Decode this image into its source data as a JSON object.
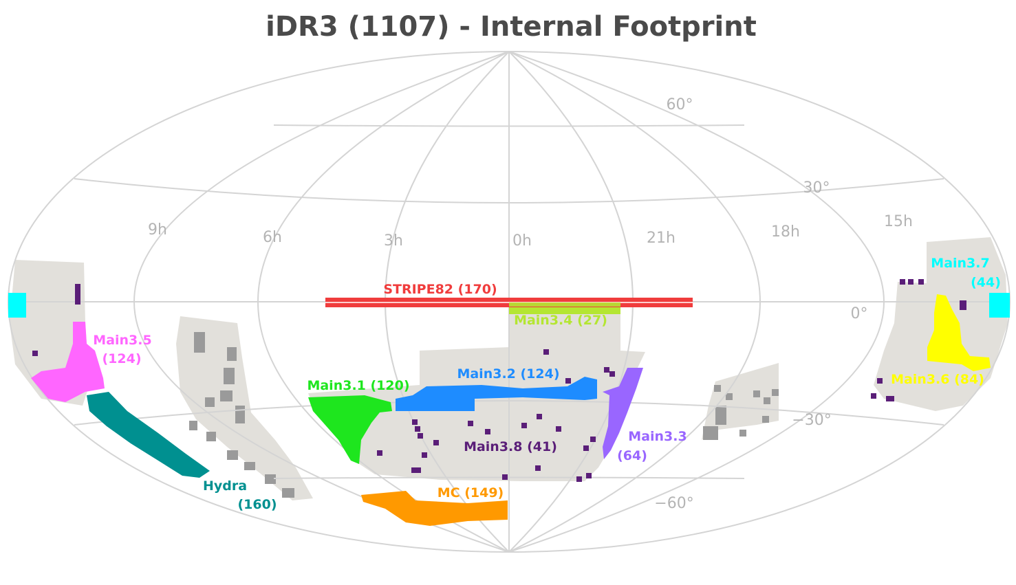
{
  "title": "iDR3 (1107) - Internal Footprint",
  "coordinate_labels": {
    "dec": [
      "60°",
      "30°",
      "0°",
      "−30°",
      "−60°"
    ],
    "ra": [
      "15h",
      "18h",
      "21h",
      "0h",
      "3h",
      "6h",
      "9h"
    ]
  },
  "colors": {
    "coverage": "#e2e0db",
    "grid": "#d4d4d4",
    "title": "#4a4a4a",
    "coord_label": "#b4b4b4"
  },
  "regions": [
    {
      "id": "stripe82",
      "lines": [
        "STRIPE82 (170)"
      ],
      "color": "#f03c3c"
    },
    {
      "id": "main3-1",
      "lines": [
        "Main3.1 (120)"
      ],
      "color": "#1ee61e"
    },
    {
      "id": "main3-2",
      "lines": [
        "Main3.2 (124)"
      ],
      "color": "#1e8cff"
    },
    {
      "id": "main3-3",
      "lines": [
        "Main3.3",
        "(64)"
      ],
      "color": "#9966ff"
    },
    {
      "id": "main3-4",
      "lines": [
        "Main3.4 (27)"
      ],
      "color": "#b4e632"
    },
    {
      "id": "main3-5",
      "lines": [
        "Main3.5",
        "(124)"
      ],
      "color": "#ff66ff"
    },
    {
      "id": "main3-6",
      "lines": [
        "Main3.6 (84)"
      ],
      "color": "#ffff00"
    },
    {
      "id": "main3-7",
      "lines": [
        "Main3.7",
        "(44)"
      ],
      "color": "#00ffff"
    },
    {
      "id": "main3-8",
      "lines": [
        "Main3.8 (41)"
      ],
      "color": "#5a1e78"
    },
    {
      "id": "hydra",
      "lines": [
        "Hydra",
        "(160)"
      ],
      "color": "#009090"
    },
    {
      "id": "mc",
      "lines": [
        "MC (149)"
      ],
      "color": "#ff9900"
    }
  ]
}
